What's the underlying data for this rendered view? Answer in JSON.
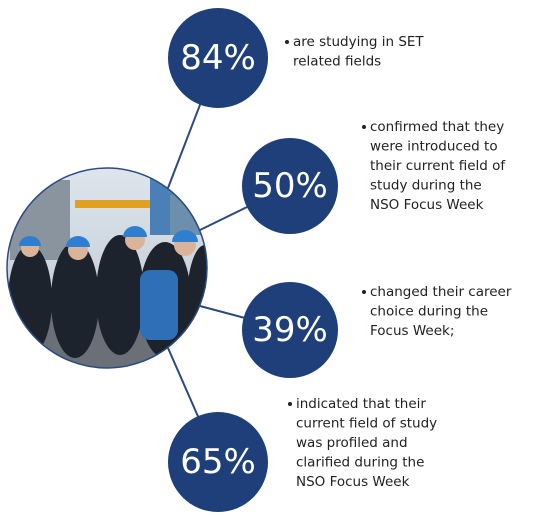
{
  "stats": [
    {
      "value": "84%",
      "lines": [
        "are studying in SET",
        "related fields"
      ]
    },
    {
      "value": "50%",
      "lines": [
        "confirmed that they",
        "were introduced to",
        "their current field of",
        "study during the",
        "NSO Focus Week"
      ]
    },
    {
      "value": "39%",
      "lines": [
        "changed their career",
        "choice during the",
        "Focus Week;"
      ]
    },
    {
      "value": "65%",
      "lines": [
        "indicated that their",
        "current field of study",
        "was profiled and",
        "clarified during the",
        "NSO Focus Week"
      ]
    }
  ]
}
